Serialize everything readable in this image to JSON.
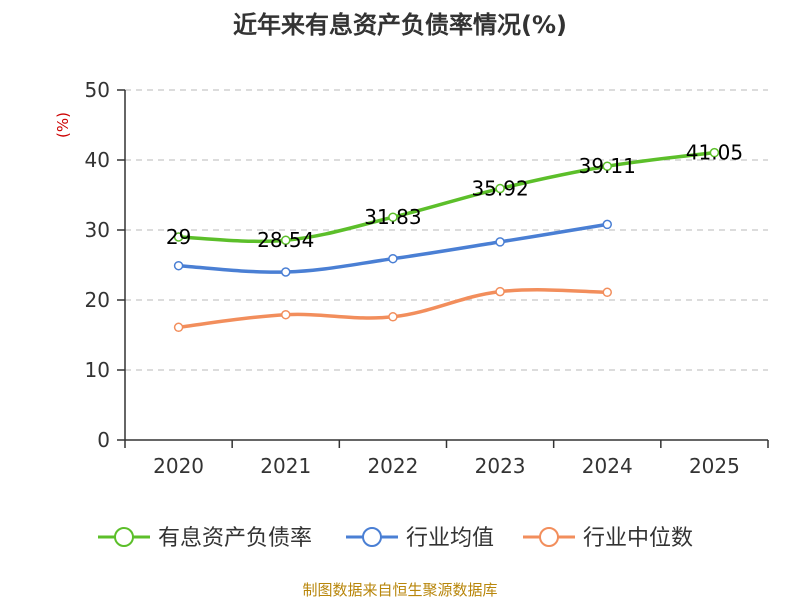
{
  "chart_data": {
    "type": "line",
    "title": "近年来有息资产负债率情况(%)",
    "unit_label": "(%)",
    "categories": [
      "2020",
      "2021",
      "2022",
      "2023",
      "2024",
      "2025"
    ],
    "ylim": [
      0,
      50
    ],
    "yticks": [
      0,
      10,
      20,
      30,
      40,
      50
    ],
    "grid": true,
    "legend_position": "bottom",
    "series": [
      {
        "name": "有息资产负债率",
        "color": "#5cbf2a",
        "values": [
          29,
          28.54,
          31.83,
          35.92,
          39.11,
          41.05
        ],
        "data_labels": [
          "29",
          "28.54",
          "31.83",
          "35.92",
          "39.11",
          "41.05"
        ]
      },
      {
        "name": "行业均值",
        "color": "#4a7fd4",
        "values": [
          24.9,
          24.0,
          25.9,
          28.3,
          30.8,
          null
        ]
      },
      {
        "name": "行业中位数",
        "color": "#f28e5c",
        "values": [
          16.1,
          17.9,
          17.6,
          21.2,
          21.1,
          null
        ]
      }
    ],
    "source": "制图数据来自恒生聚源数据库"
  }
}
